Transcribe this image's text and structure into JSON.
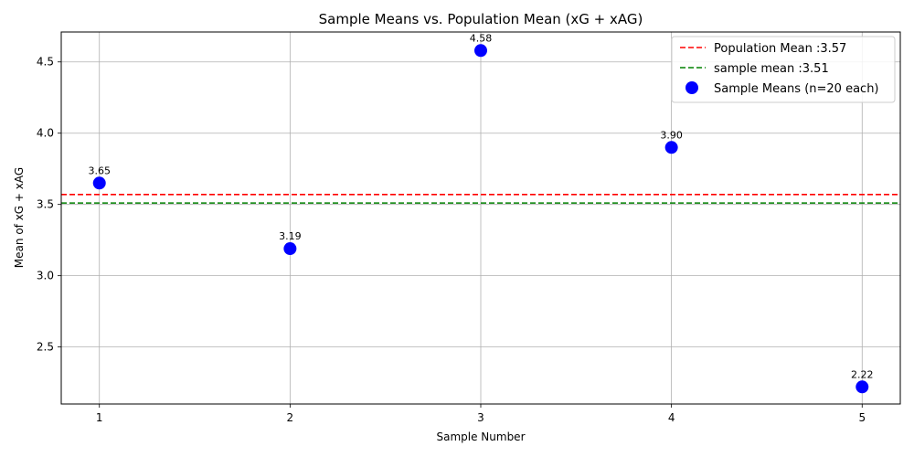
{
  "chart_data": {
    "type": "scatter",
    "title": "Sample Means vs. Population Mean (xG + xAG)",
    "xlabel": "Sample Number",
    "ylabel": "Mean of xG + xAG",
    "xlim": [
      0.8,
      5.2
    ],
    "ylim": [
      2.1,
      4.71
    ],
    "x_ticks": [
      1,
      2,
      3,
      4,
      5
    ],
    "y_ticks": [
      2.5,
      3.0,
      3.5,
      4.0,
      4.5
    ],
    "x_tick_labels": [
      "1",
      "2",
      "3",
      "4",
      "5"
    ],
    "y_tick_labels": [
      "2.5",
      "3.0",
      "3.5",
      "4.0",
      "4.5"
    ],
    "grid": true,
    "legend_position": "top-right",
    "series": [
      {
        "name": "Sample Means (n=20 each)",
        "color": "#0000ff",
        "x": [
          1,
          2,
          3,
          4,
          5
        ],
        "y": [
          3.65,
          3.19,
          4.58,
          3.9,
          2.22
        ],
        "labels": [
          "3.65",
          "3.19",
          "4.58",
          "3.90",
          "2.22"
        ]
      }
    ],
    "reference_lines": [
      {
        "name": "Population Mean :3.57",
        "value": 3.57,
        "color": "#ff0000",
        "style": "dashed"
      },
      {
        "name": "sample mean :3.51",
        "value": 3.51,
        "color": "#008000",
        "style": "dashed"
      }
    ]
  }
}
